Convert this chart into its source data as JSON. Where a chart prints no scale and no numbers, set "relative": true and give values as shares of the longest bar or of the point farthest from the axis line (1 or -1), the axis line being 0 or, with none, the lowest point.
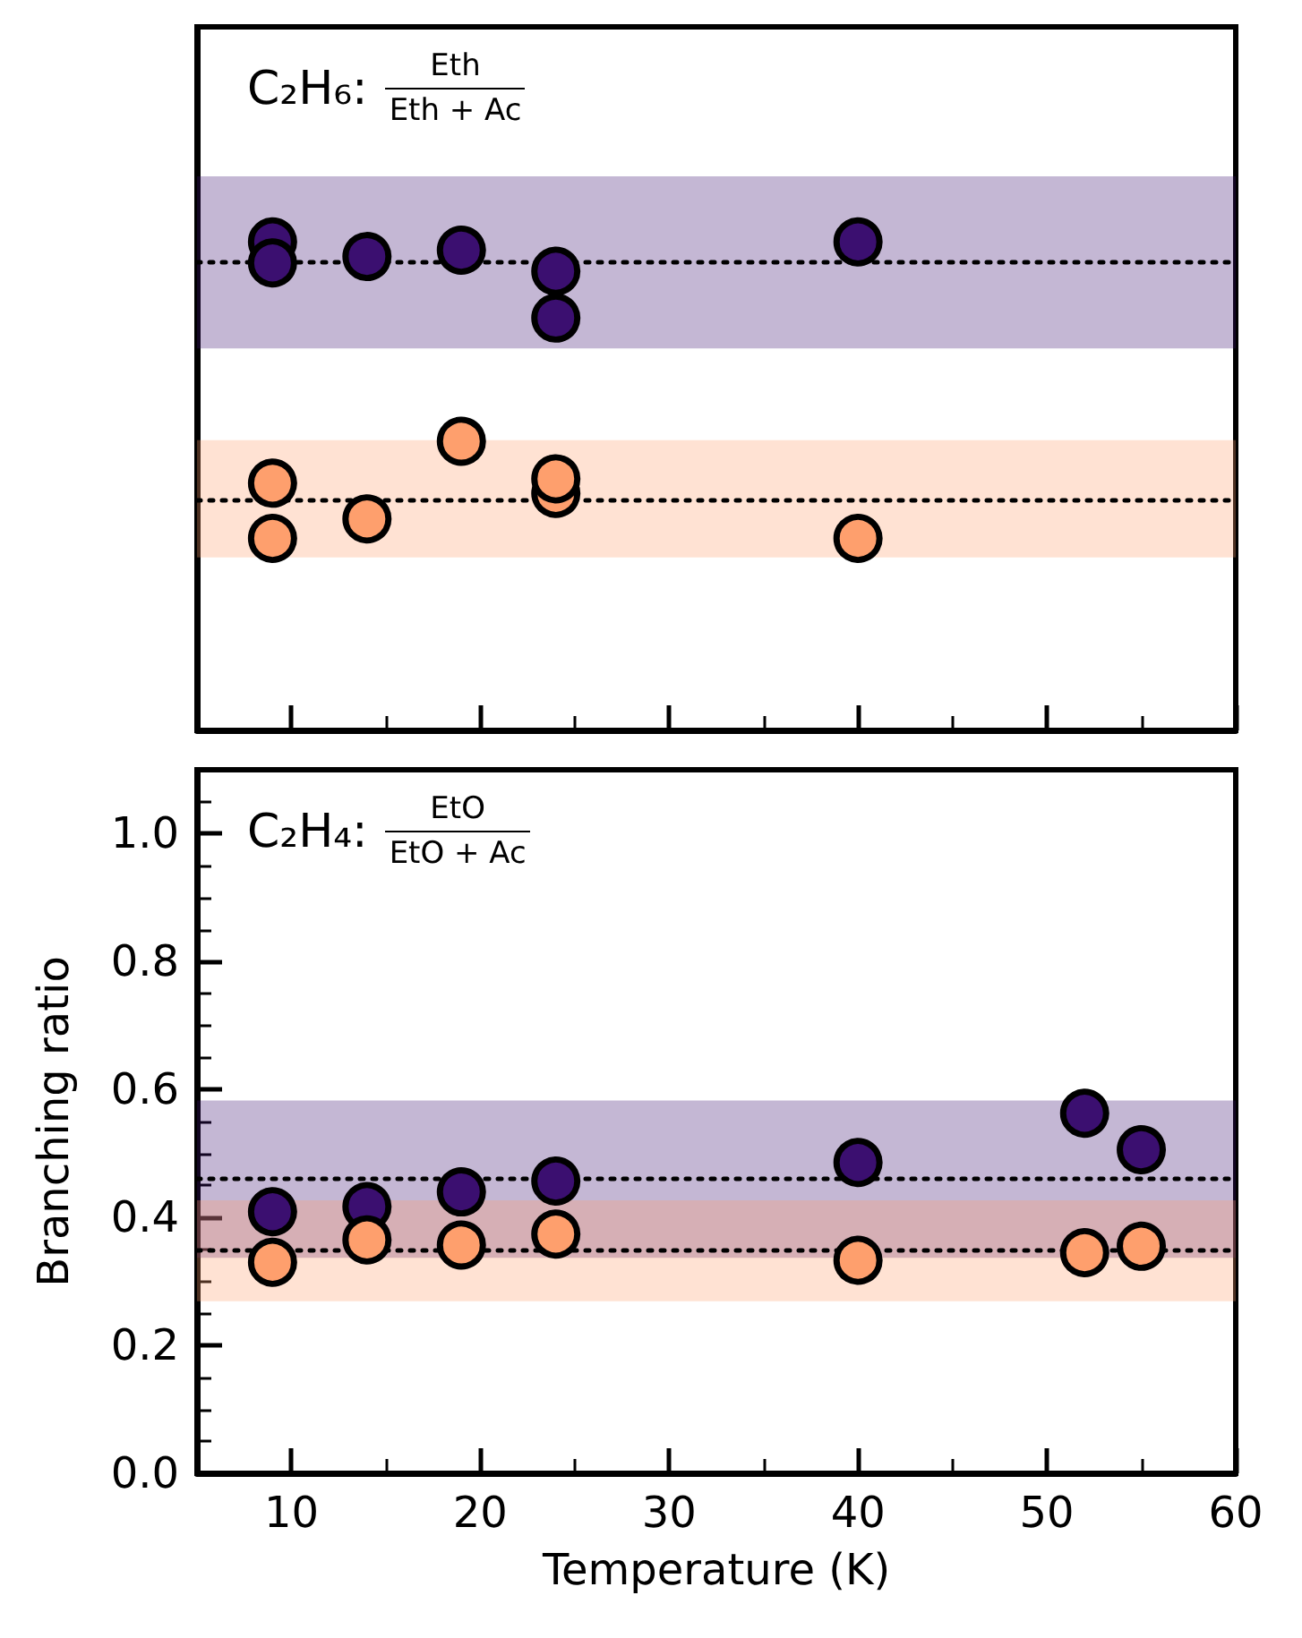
{
  "chart_data": [
    {
      "type": "scatter",
      "title": "C₂H₆:",
      "annotations": [
        "Eth",
        "Eth + Ac"
      ],
      "xlim": [
        5,
        60
      ],
      "xticks": [
        10,
        20,
        30,
        40,
        50,
        60
      ],
      "tick_labels": false,
      "relative": true,
      "marker": "circle",
      "series": [
        {
          "color": "#3b0f70",
          "x": [
            9,
            9,
            14,
            19,
            24,
            24,
            40
          ],
          "values": [
            1,
            0.957,
            0.97,
            0.983,
            0.94,
            0.844,
            1
          ]
        },
        {
          "color": "#fe9f6d",
          "x": [
            9,
            9,
            14,
            19,
            24,
            24,
            40
          ],
          "values": [
            0.506,
            0.393,
            0.433,
            0.592,
            0.485,
            0.515,
            0.393
          ]
        }
      ],
      "ref_lines": [
        {
          "axis": "y",
          "value": 0.957,
          "color": "#000000",
          "line_style": "dotted"
        },
        {
          "axis": "y",
          "value": 0.474,
          "color": "#000000",
          "line_style": "dotted"
        }
      ],
      "bands": [
        {
          "axis": "y",
          "from": 0.782,
          "to": 1.134,
          "color": "#3b0f70"
        },
        {
          "axis": "y",
          "from": 0.354,
          "to": 0.594,
          "color": "#fe9f6d"
        }
      ]
    },
    {
      "type": "scatter",
      "title": "C₂H₄:",
      "annotations": [
        "EtO",
        "EtO + Ac"
      ],
      "xlabel": "Temperature (K)",
      "ylabel": "Branching ratio",
      "xlim": [
        5,
        60
      ],
      "xticks": [
        10,
        20,
        30,
        40,
        50,
        60
      ],
      "ylim": [
        0,
        1.1
      ],
      "yticks": [
        {
          "value": 0,
          "label": "0.0"
        },
        {
          "value": 0.2,
          "label": "0.2"
        },
        {
          "value": 0.4,
          "label": "0.4"
        },
        {
          "value": 0.6,
          "label": "0.6"
        },
        {
          "value": 0.8,
          "label": "0.8"
        },
        {
          "value": 1,
          "label": "1.0"
        }
      ],
      "marker": "circle",
      "series": [
        {
          "color": "#3b0f70",
          "x": [
            9,
            14,
            19,
            24,
            40,
            52,
            55
          ],
          "values": [
            0.409,
            0.417,
            0.44,
            0.457,
            0.486,
            0.563,
            0.506
          ]
        },
        {
          "color": "#fe9f6d",
          "x": [
            9,
            14,
            19,
            24,
            40,
            52,
            55
          ],
          "values": [
            0.33,
            0.365,
            0.357,
            0.374,
            0.333,
            0.345,
            0.355
          ]
        }
      ],
      "ref_lines": [
        {
          "axis": "y",
          "value": 0.461,
          "color": "#000000",
          "line_style": "dotted"
        },
        {
          "axis": "y",
          "value": 0.347,
          "color": "#000000",
          "line_style": "dotted"
        }
      ],
      "bands": [
        {
          "axis": "y",
          "from": 0.337,
          "to": 0.583,
          "color": "#3b0f70"
        },
        {
          "axis": "y",
          "from": 0.269,
          "to": 0.427,
          "color": "#fe9f6d"
        }
      ]
    }
  ]
}
